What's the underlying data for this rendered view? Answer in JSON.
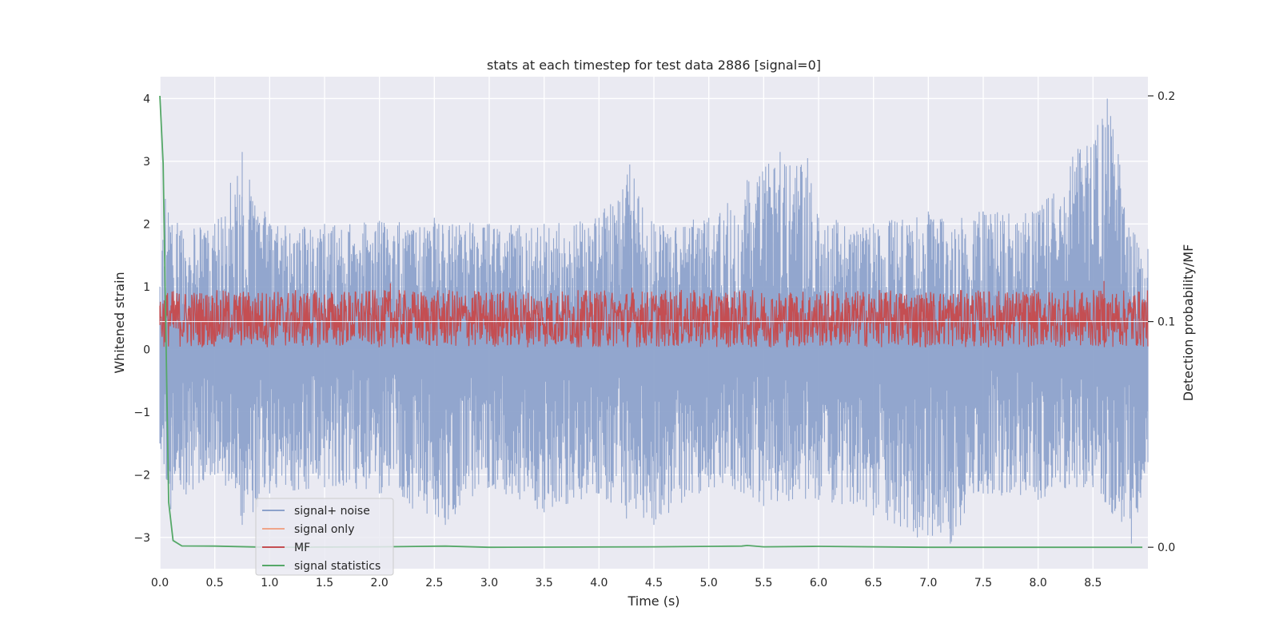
{
  "chart_data": {
    "type": "line",
    "title": "stats at each timestep for test data 2886 [signal=0]",
    "xlabel": "Time (s)",
    "ylabel": "Whitened strain",
    "y2label": "Detection probability/MF",
    "xlim": [
      0.0,
      9.0
    ],
    "ylim": [
      -3.5,
      4.35
    ],
    "y2lim": [
      -0.0095,
      0.2085
    ],
    "x_ticks": [
      "0.0",
      "0.5",
      "1.0",
      "1.5",
      "2.0",
      "2.5",
      "3.0",
      "3.5",
      "4.0",
      "4.5",
      "5.0",
      "5.5",
      "6.0",
      "6.5",
      "7.0",
      "7.5",
      "8.0",
      "8.5"
    ],
    "y_ticks": [
      "4",
      "3",
      "2",
      "1",
      "0",
      "−1",
      "−2",
      "−3"
    ],
    "y2_ticks": [
      "0.2",
      "0.1",
      "0.0"
    ],
    "grid": true,
    "legend_position": "lower-left",
    "colors": {
      "background": "#eaeaf2",
      "grid": "#ffffff",
      "signal_noise": "#8da2cb",
      "signal_only": "#f0a58a",
      "mf": "#c44e52",
      "signal_statistics": "#55a868"
    },
    "series": [
      {
        "name": "signal+ noise",
        "axis": "left",
        "description_values": "noise envelope",
        "envelope_upper": [
          [
            0.0,
            1.0
          ],
          [
            0.05,
            2.4
          ],
          [
            0.2,
            1.9
          ],
          [
            0.5,
            2.0
          ],
          [
            0.75,
            3.15
          ],
          [
            1.0,
            2.0
          ],
          [
            1.5,
            2.0
          ],
          [
            2.0,
            2.05
          ],
          [
            2.5,
            2.1
          ],
          [
            3.0,
            2.0
          ],
          [
            3.5,
            2.0
          ],
          [
            4.0,
            2.1
          ],
          [
            4.28,
            2.95
          ],
          [
            4.5,
            2.0
          ],
          [
            5.0,
            2.1
          ],
          [
            5.35,
            2.7
          ],
          [
            5.65,
            3.15
          ],
          [
            5.9,
            3.05
          ],
          [
            6.0,
            2.1
          ],
          [
            6.5,
            2.0
          ],
          [
            7.0,
            2.2
          ],
          [
            7.5,
            2.2
          ],
          [
            8.0,
            2.2
          ],
          [
            8.63,
            4.0
          ],
          [
            8.9,
            1.7
          ],
          [
            9.0,
            1.6
          ]
        ],
        "envelope_lower": [
          [
            0.0,
            -1.5
          ],
          [
            0.1,
            -2.55
          ],
          [
            0.5,
            -2.0
          ],
          [
            0.75,
            -2.8
          ],
          [
            1.0,
            -2.3
          ],
          [
            1.5,
            -2.2
          ],
          [
            2.0,
            -2.3
          ],
          [
            2.6,
            -2.8
          ],
          [
            3.0,
            -2.2
          ],
          [
            3.5,
            -2.6
          ],
          [
            4.0,
            -2.3
          ],
          [
            4.25,
            -2.7
          ],
          [
            4.5,
            -2.8
          ],
          [
            5.0,
            -2.2
          ],
          [
            5.5,
            -2.5
          ],
          [
            6.0,
            -2.4
          ],
          [
            6.5,
            -2.65
          ],
          [
            6.9,
            -3.0
          ],
          [
            7.2,
            -3.1
          ],
          [
            7.5,
            -2.3
          ],
          [
            8.0,
            -2.4
          ],
          [
            8.5,
            -2.2
          ],
          [
            8.85,
            -3.1
          ],
          [
            9.0,
            -1.8
          ]
        ]
      },
      {
        "name": "signal only",
        "axis": "left",
        "values": []
      },
      {
        "name": "MF",
        "axis": "right",
        "baseline": 0.1,
        "range": [
          0.09,
          0.12
        ],
        "peaks": [
          [
            0.0,
            0.107
          ],
          [
            2.1,
            0.117
          ],
          [
            4.3,
            0.115
          ],
          [
            6.8,
            0.112
          ],
          [
            8.6,
            0.118
          ]
        ]
      },
      {
        "name": "signal statistics",
        "axis": "right",
        "points": [
          [
            0.0,
            0.2
          ],
          [
            0.03,
            0.17
          ],
          [
            0.08,
            0.02
          ],
          [
            0.12,
            0.003
          ],
          [
            0.2,
            0.0006
          ],
          [
            0.5,
            0.0005
          ],
          [
            1.0,
            0.0
          ],
          [
            2.0,
            0.0002
          ],
          [
            2.6,
            0.0005
          ],
          [
            3.0,
            0.0
          ],
          [
            4.5,
            0.0002
          ],
          [
            5.3,
            0.0005
          ],
          [
            5.35,
            0.0008
          ],
          [
            5.5,
            0.0002
          ],
          [
            6.0,
            0.0004
          ],
          [
            7.0,
            0.0
          ],
          [
            8.0,
            0.0
          ],
          [
            8.95,
            0.0
          ]
        ]
      }
    ]
  }
}
